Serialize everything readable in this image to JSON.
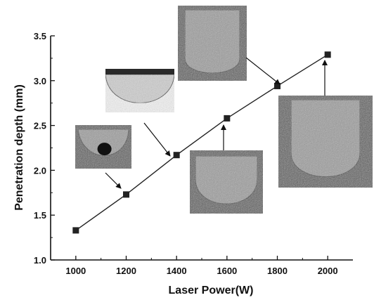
{
  "chart_data": {
    "type": "line",
    "title": "",
    "xlabel": "Laser Power(W)",
    "ylabel": "Penetration depth (mm)",
    "xlim": [
      900,
      2100
    ],
    "ylim": [
      1.0,
      3.5
    ],
    "x_ticks": [
      "1000",
      "1200",
      "1400",
      "1600",
      "1800",
      "2000"
    ],
    "y_ticks": [
      "1.0",
      "1.5",
      "2.0",
      "2.5",
      "3.0",
      "3.5"
    ],
    "grid": false,
    "series": [
      {
        "x": [
          1000,
          1200,
          1400,
          1600,
          1800,
          2000
        ],
        "values": [
          1.33,
          1.73,
          2.17,
          2.58,
          2.94,
          3.29
        ]
      }
    ],
    "colors": {
      "line": "#222222",
      "marker": "#222222"
    },
    "inset_images": [
      {
        "depicts": "weld-cross-section-micrograph",
        "points_to_x": 1200
      },
      {
        "depicts": "weld-cross-section-micrograph",
        "points_to_x": 1400
      },
      {
        "depicts": "weld-cross-section-micrograph",
        "points_to_x": 1600
      },
      {
        "depicts": "weld-cross-section-micrograph",
        "points_to_x": 1800
      },
      {
        "depicts": "weld-cross-section-micrograph",
        "points_to_x": 2000
      }
    ]
  }
}
